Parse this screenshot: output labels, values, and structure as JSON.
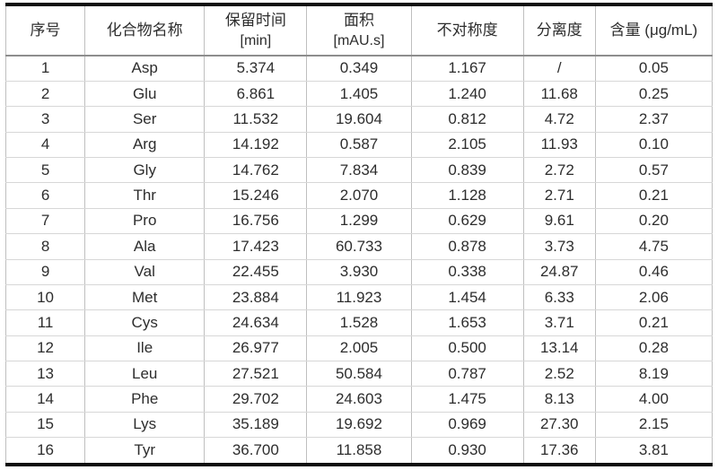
{
  "chart_data": {
    "type": "table",
    "title": "",
    "columns": [
      {
        "label": "序号",
        "sublabel": ""
      },
      {
        "label": "化合物名称",
        "sublabel": ""
      },
      {
        "label": "保留时间",
        "sublabel": "[min]"
      },
      {
        "label": "面积",
        "sublabel": "[mAU.s]"
      },
      {
        "label": "不对称度",
        "sublabel": ""
      },
      {
        "label": "分离度",
        "sublabel": ""
      },
      {
        "label": "含量 (μg/mL)",
        "sublabel": ""
      }
    ],
    "rows": [
      [
        "1",
        "Asp",
        "5.374",
        "0.349",
        "1.167",
        "/",
        "0.05"
      ],
      [
        "2",
        "Glu",
        "6.861",
        "1.405",
        "1.240",
        "11.68",
        "0.25"
      ],
      [
        "3",
        "Ser",
        "11.532",
        "19.604",
        "0.812",
        "4.72",
        "2.37"
      ],
      [
        "4",
        "Arg",
        "14.192",
        "0.587",
        "2.105",
        "11.93",
        "0.10"
      ],
      [
        "5",
        "Gly",
        "14.762",
        "7.834",
        "0.839",
        "2.72",
        "0.57"
      ],
      [
        "6",
        "Thr",
        "15.246",
        "2.070",
        "1.128",
        "2.71",
        "0.21"
      ],
      [
        "7",
        "Pro",
        "16.756",
        "1.299",
        "0.629",
        "9.61",
        "0.20"
      ],
      [
        "8",
        "Ala",
        "17.423",
        "60.733",
        "0.878",
        "3.73",
        "4.75"
      ],
      [
        "9",
        "Val",
        "22.455",
        "3.930",
        "0.338",
        "24.87",
        "0.46"
      ],
      [
        "10",
        "Met",
        "23.884",
        "11.923",
        "1.454",
        "6.33",
        "2.06"
      ],
      [
        "11",
        "Cys",
        "24.634",
        "1.528",
        "1.653",
        "3.71",
        "0.21"
      ],
      [
        "12",
        "Ile",
        "26.977",
        "2.005",
        "0.500",
        "13.14",
        "0.28"
      ],
      [
        "13",
        "Leu",
        "27.521",
        "50.584",
        "0.787",
        "2.52",
        "8.19"
      ],
      [
        "14",
        "Phe",
        "29.702",
        "24.603",
        "1.475",
        "8.13",
        "4.00"
      ],
      [
        "15",
        "Lys",
        "35.189",
        "19.692",
        "0.969",
        "27.30",
        "2.15"
      ],
      [
        "16",
        "Tyr",
        "36.700",
        "11.858",
        "0.930",
        "17.36",
        "3.81"
      ]
    ],
    "colors": {
      "rule_thick": "#0d0d0d",
      "rule_header": "#8d8d8d",
      "gridline": "#bfbfbf",
      "row_line": "#d7d7d7",
      "text": "#2d2d2d",
      "background": "#ffffff"
    }
  }
}
